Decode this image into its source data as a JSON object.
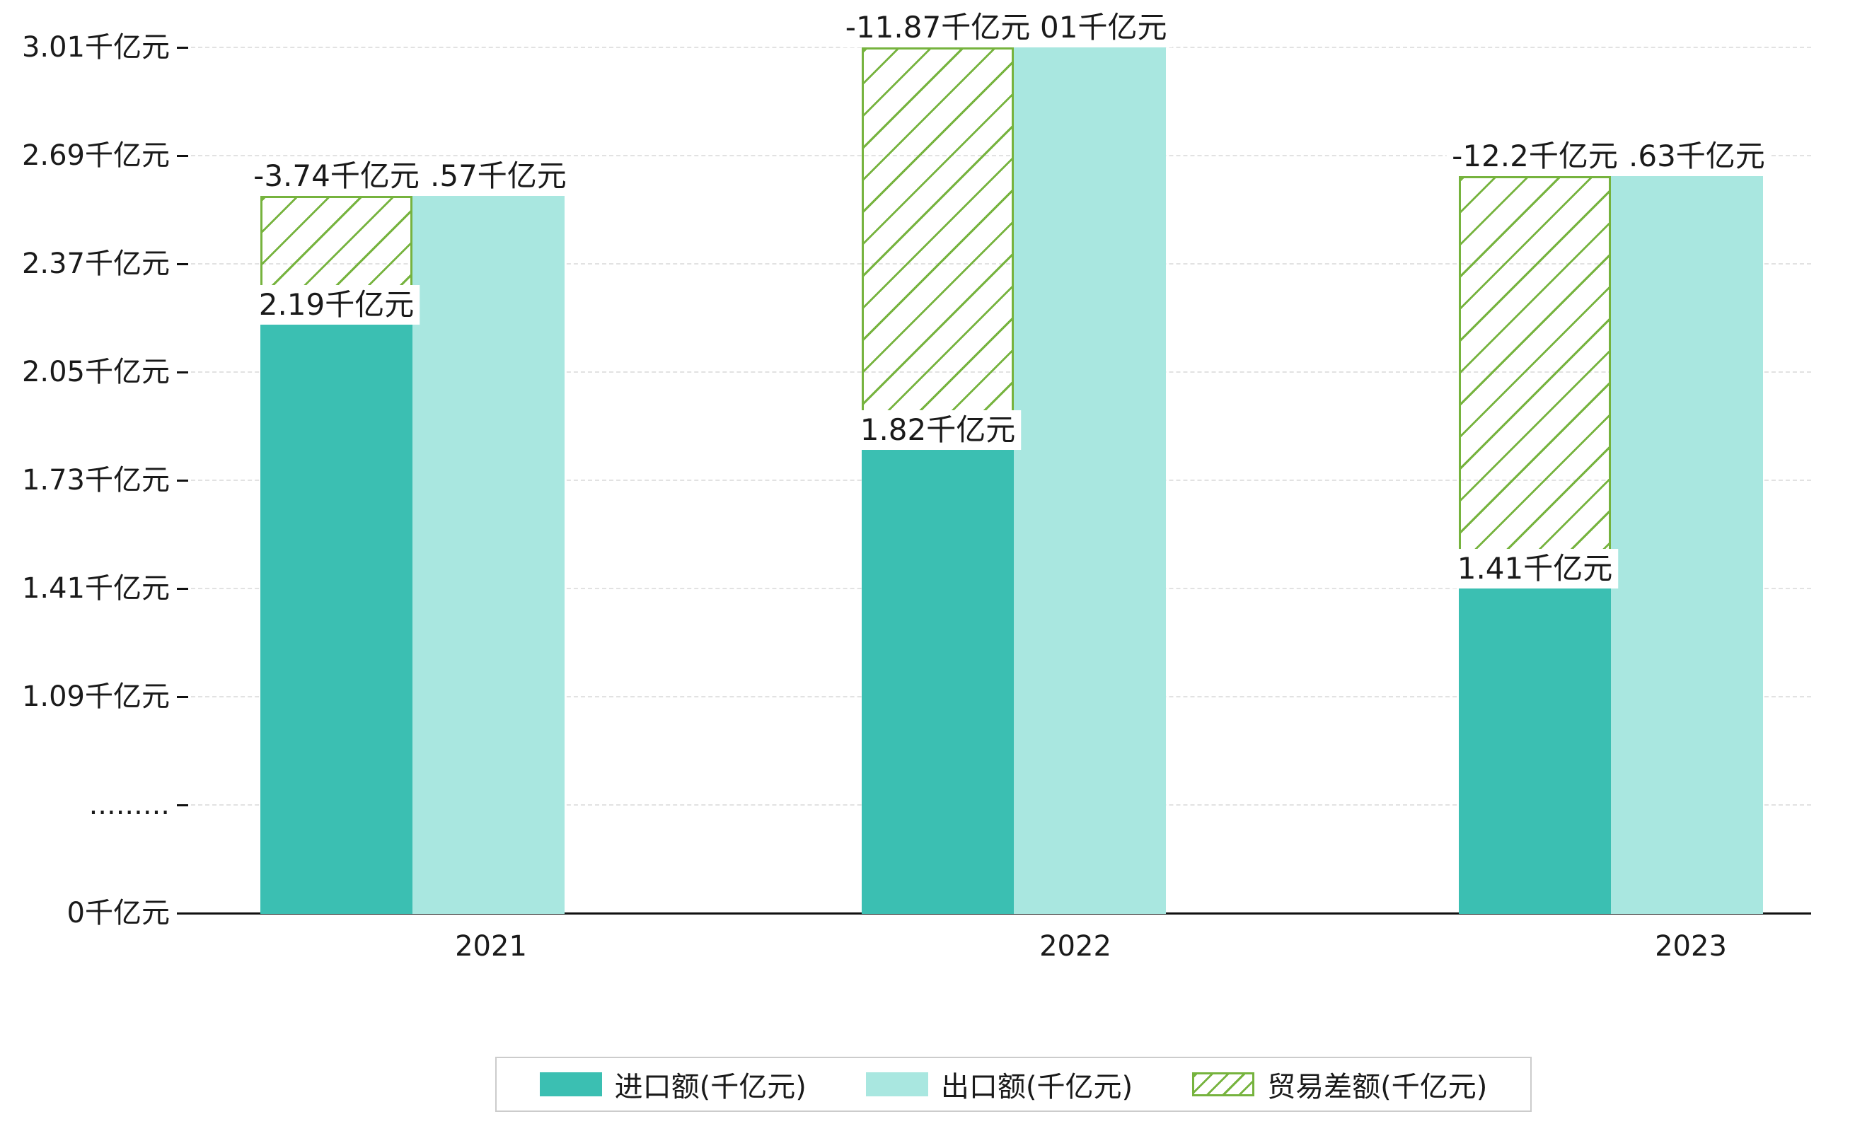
{
  "chart_data": {
    "type": "bar",
    "title": "",
    "categories": [
      "2021",
      "2022",
      "2023"
    ],
    "unit": "千亿元",
    "series": [
      {
        "name": "进口额(千亿元)",
        "values": [
          2.19,
          1.82,
          1.41
        ],
        "color": "#3bbfb2",
        "data_labels": [
          "2.19千亿元",
          "1.82千亿元",
          "1.41千亿元"
        ]
      },
      {
        "name": "出口额(千亿元)",
        "values": [
          2.57,
          3.01,
          2.63
        ],
        "color": "#a9e7e0",
        "data_labels_visible": [
          ".57千亿元",
          "01千亿元",
          ".63千亿元"
        ]
      },
      {
        "name": "贸易差额(千亿元)",
        "values": [
          -3.74,
          -11.87,
          -12.2
        ],
        "color": "#76b33e",
        "style": "hatched",
        "data_labels": [
          "-3.74千亿元",
          "-11.87千亿元",
          "-12.2千亿元"
        ],
        "band_bottom_values": [
          2.19,
          1.82,
          1.41
        ],
        "band_top_values": [
          2.57,
          3.01,
          2.63
        ]
      }
    ],
    "y_axis": {
      "tick_labels": [
        "3.01千亿元",
        "2.69千亿元",
        "2.37千亿元",
        "2.05千亿元",
        "1.73千亿元",
        "1.41千亿元",
        "1.09千亿元",
        ".........",
        "0千亿元"
      ],
      "tick_values": [
        3.01,
        2.69,
        2.37,
        2.05,
        1.73,
        1.41,
        1.09,
        null,
        0
      ],
      "axis_break": true
    },
    "xlabel": "",
    "ylabel": "",
    "grid": "dashed-horizontal",
    "legend_position": "bottom"
  }
}
